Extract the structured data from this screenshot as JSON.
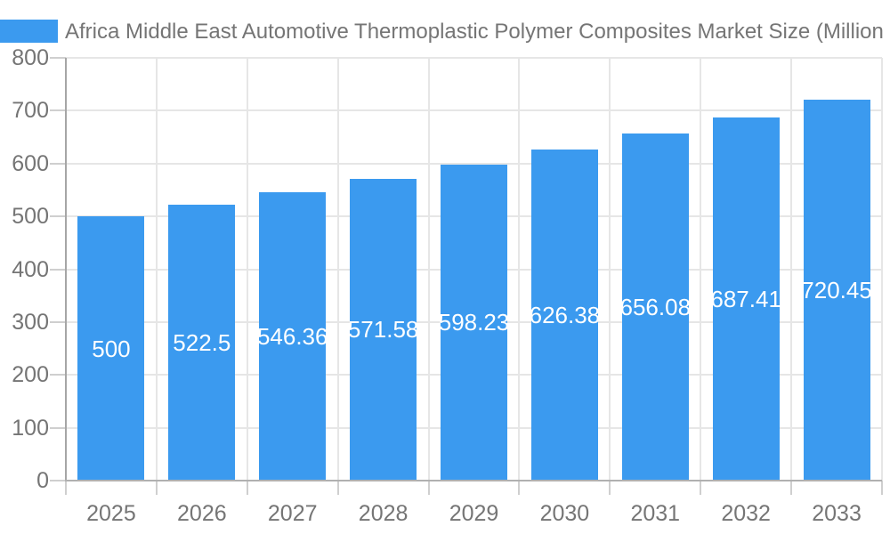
{
  "chart_data": {
    "type": "bar",
    "title": "Africa Middle East Automotive Thermoplastic Polymer Composites Market Size (Million",
    "categories": [
      "2025",
      "2026",
      "2027",
      "2028",
      "2029",
      "2030",
      "2031",
      "2032",
      "2033"
    ],
    "values": [
      500,
      522.5,
      546.36,
      571.58,
      598.23,
      626.38,
      656.08,
      687.41,
      720.45
    ],
    "value_labels": [
      "500",
      "522.5",
      "546.36",
      "571.58",
      "598.23",
      "626.38",
      "656.08",
      "687.41",
      "720.45"
    ],
    "xlabel": "",
    "ylabel": "",
    "ylim": [
      0,
      800
    ],
    "yticks": [
      0,
      100,
      200,
      300,
      400,
      500,
      600,
      700,
      800
    ],
    "grid": true,
    "legend_position": "top-left",
    "colors": {
      "bar": "#3B9AEF",
      "value_label": "#FFFFFF",
      "axis_text": "#757575",
      "grid": "#E6E6E6",
      "axis_line": "#A6A6A6",
      "baseline": "#B0B0B0",
      "tick": "#CFCFCF",
      "background": "#FFFFFF"
    }
  }
}
